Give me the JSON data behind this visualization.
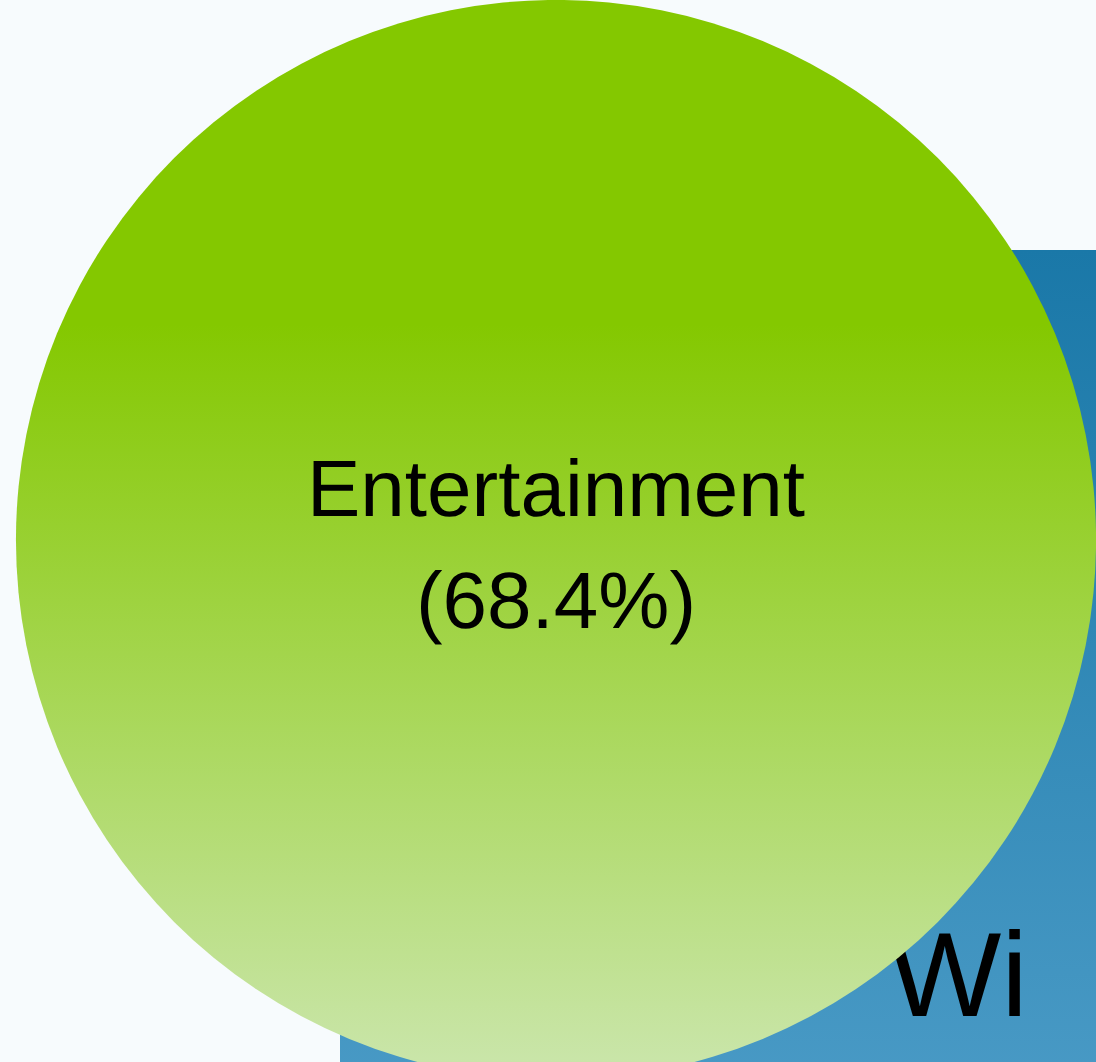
{
  "chart_data": {
    "type": "other",
    "categories": [
      "Entertainment"
    ],
    "values": [
      68.4
    ],
    "value_labels": [
      "(68.4%)"
    ],
    "colors": [
      "#84c800"
    ],
    "annotations": [
      "Wi"
    ]
  }
}
